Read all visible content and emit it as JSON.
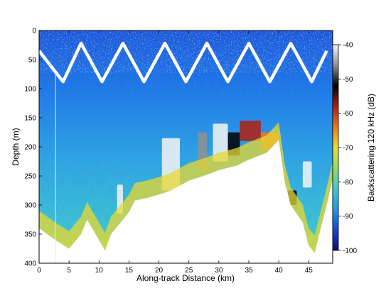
{
  "chart_data": {
    "type": "heatmap",
    "title": "",
    "xlabel": "Along-track Distance (km)",
    "ylabel": "Depth (m)",
    "xlim": [
      0,
      49
    ],
    "ylim": [
      0,
      400
    ],
    "y_inverted": true,
    "xticks": [
      0,
      5,
      10,
      15,
      20,
      25,
      30,
      35,
      40,
      45
    ],
    "yticks": [
      0,
      50,
      100,
      150,
      200,
      250,
      300,
      350,
      400
    ],
    "colorbar": {
      "label": "Backscattering 120 kHz (dB)",
      "range": [
        -100,
        -40
      ],
      "ticks": [
        -40,
        -50,
        -60,
        -70,
        -80,
        -90,
        -100
      ],
      "colormap": [
        "#0a0a7a",
        "#1446d8",
        "#1e9ae6",
        "#3ec8d6",
        "#8ee06a",
        "#f0dc2a",
        "#f07818",
        "#b41e10",
        "#000000",
        "#909090",
        "#f5f5f5"
      ]
    },
    "seafloor_depth": {
      "x": [
        0,
        3,
        5,
        7,
        8,
        10,
        11,
        12,
        14,
        15,
        16,
        18,
        20,
        22,
        25,
        28,
        30,
        33,
        35,
        38,
        40,
        41,
        42,
        44,
        45,
        46,
        47,
        48,
        49
      ],
      "y": [
        340,
        362,
        375,
        350,
        325,
        360,
        378,
        350,
        325,
        312,
        292,
        288,
        282,
        275,
        258,
        248,
        240,
        232,
        222,
        210,
        188,
        260,
        300,
        330,
        370,
        382,
        340,
        300,
        255
      ]
    },
    "towyo_track": {
      "x": [
        0,
        1.5,
        4,
        7,
        10.5,
        14,
        17.5,
        21,
        24.5,
        28,
        31.5,
        35,
        38.5,
        42,
        45.5,
        48
      ],
      "y": [
        35,
        55,
        88,
        22,
        88,
        22,
        88,
        22,
        88,
        22,
        88,
        22,
        88,
        22,
        88,
        35
      ]
    },
    "scattering_layers": [
      {
        "x_start": 13,
        "x_end": 14,
        "depth_top": 265,
        "depth_bottom": 315,
        "level_db": -43
      },
      {
        "x_start": 20.5,
        "x_end": 23.5,
        "depth_top": 185,
        "depth_bottom": 275,
        "level_db": -42
      },
      {
        "x_start": 26.5,
        "x_end": 28,
        "depth_top": 175,
        "depth_bottom": 240,
        "level_db": -45
      },
      {
        "x_start": 29,
        "x_end": 31.5,
        "depth_top": 160,
        "depth_bottom": 225,
        "level_db": -43
      },
      {
        "x_start": 31.5,
        "x_end": 33.5,
        "depth_top": 175,
        "depth_bottom": 215,
        "level_db": -52
      },
      {
        "x_start": 33.5,
        "x_end": 37,
        "depth_top": 155,
        "depth_bottom": 190,
        "level_db": -58
      },
      {
        "x_start": 37,
        "x_end": 40,
        "depth_top": 175,
        "depth_bottom": 205,
        "level_db": -62
      },
      {
        "x_start": 44,
        "x_end": 45.5,
        "depth_top": 225,
        "depth_bottom": 270,
        "level_db": -43
      },
      {
        "x_start": 41.5,
        "x_end": 43,
        "depth_top": 275,
        "depth_bottom": 300,
        "level_db": -50
      }
    ]
  }
}
